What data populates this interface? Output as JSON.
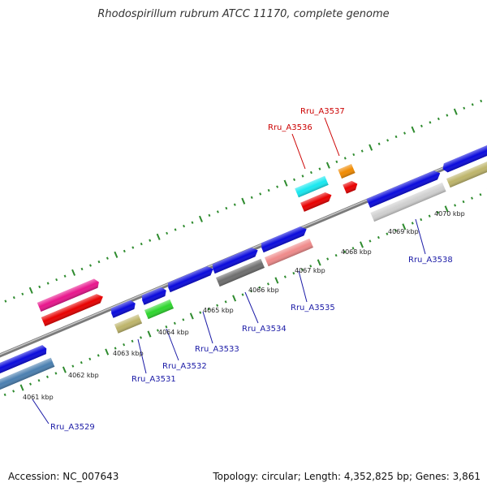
{
  "title": "Rhodospirillum rubrum ATCC 11170, complete genome",
  "footer": {
    "accession_label": "Accession:",
    "accession": "NC_007643",
    "topology_label": "Topology:",
    "topology": "circular",
    "length_label": "Length:",
    "length": "4,352,825 bp",
    "genes_label": "Genes:",
    "genes": "3,861"
  },
  "scale_labels": [
    "4061 kbp",
    "4062 kbp",
    "4063 kbp",
    "4064 kbp",
    "4065 kbp",
    "4066 kbp",
    "4067 kbp",
    "4068 kbp",
    "4069 kbp",
    "4070 kbp"
  ],
  "gene_labels": [
    {
      "text": "Rru_A3529",
      "color": "#1a1aa6"
    },
    {
      "text": "Rru_A3531",
      "color": "#1a1aa6"
    },
    {
      "text": "Rru_A3532",
      "color": "#1a1aa6"
    },
    {
      "text": "Rru_A3533",
      "color": "#1a1aa6"
    },
    {
      "text": "Rru_A3534",
      "color": "#1a1aa6"
    },
    {
      "text": "Rru_A3535",
      "color": "#1a1aa6"
    },
    {
      "text": "Rru_A3536",
      "color": "#cc0000"
    },
    {
      "text": "Rru_A3537",
      "color": "#cc0000"
    },
    {
      "text": "Rru_A3538",
      "color": "#1a1aa6"
    }
  ],
  "colors": {
    "backbone": "#8a8a8a",
    "tick": "#2e8b2e",
    "blue": "#0a0adc",
    "red": "#e80000",
    "magenta": "#e8158c",
    "cyan": "#18e8f0",
    "orange": "#f08a00",
    "khaki": "#bdb46a",
    "green": "#2ed62e",
    "grey": "#6e6e6e",
    "lightgrey": "#cfcfcf",
    "pink": "#ef8a8a",
    "steelblue": "#4a7fb0"
  }
}
